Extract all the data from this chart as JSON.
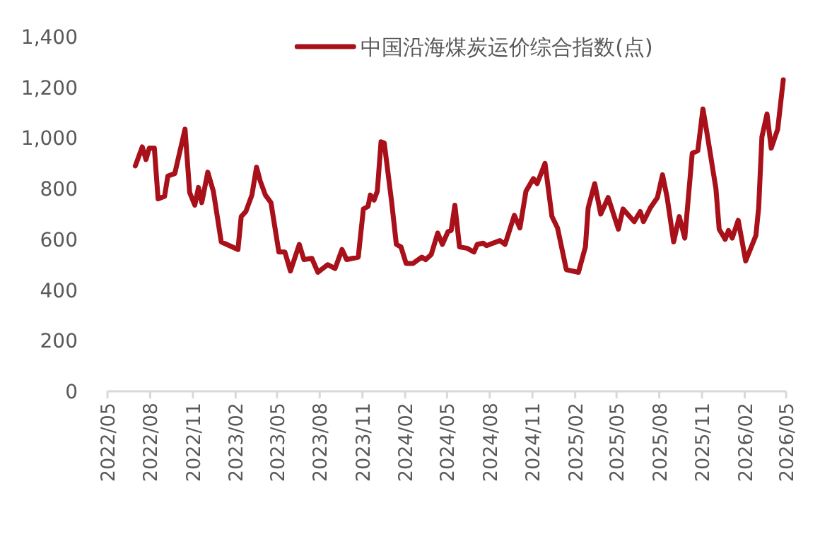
{
  "chart_data": {
    "type": "line",
    "legend": "top",
    "xlim": [
      "2022-05",
      "2026-05"
    ],
    "xticks": [
      {
        "value": "2022-05",
        "label": "2022/05"
      },
      {
        "value": "2022-08",
        "label": "2022/08"
      },
      {
        "value": "2022-11",
        "label": "2022/11"
      },
      {
        "value": "2023-02",
        "label": "2023/02"
      },
      {
        "value": "2023-05",
        "label": "2023/05"
      },
      {
        "value": "2023-08",
        "label": "2023/08"
      },
      {
        "value": "2023-11",
        "label": "2023/11"
      },
      {
        "value": "2024-02",
        "label": "2024/02"
      },
      {
        "value": "2024-05",
        "label": "2024/05"
      },
      {
        "value": "2024-08",
        "label": "2024/08"
      },
      {
        "value": "2024-11",
        "label": "2024/11"
      },
      {
        "value": "2025-02",
        "label": "2025/02"
      },
      {
        "value": "2025-05",
        "label": "2025/05"
      },
      {
        "value": "2025-08",
        "label": "2025/08"
      },
      {
        "value": "2025-11",
        "label": "2025/11"
      },
      {
        "value": "2026-02",
        "label": "2026/02"
      },
      {
        "value": "2026-05",
        "label": "2026/05"
      }
    ],
    "ylim": [
      0,
      1400
    ],
    "yticks": [
      0,
      200,
      400,
      600,
      800,
      {
        "value": 1000,
        "label": "1,000"
      },
      {
        "value": 1200,
        "label": "1,200"
      },
      {
        "value": 1400,
        "label": "1,400"
      }
    ],
    "x": [
      "2022-06-30",
      "2022-07-15",
      "2022-07-23",
      "2022-07-30",
      "2022-08-10",
      "2022-08-18",
      "2022-09-01",
      "2022-09-08",
      "2022-09-23",
      "2022-10-15",
      "2022-10-25",
      "2022-11-05",
      "2022-11-13",
      "2022-11-20",
      "2022-12-03",
      "2022-12-15",
      "2023-01-01",
      "2023-02-06",
      "2023-02-13",
      "2023-02-23",
      "2023-03-08",
      "2023-03-18",
      "2023-03-26",
      "2023-04-06",
      "2023-04-18",
      "2023-05-05",
      "2023-05-18",
      "2023-05-30",
      "2023-06-18",
      "2023-06-28",
      "2023-07-15",
      "2023-07-28",
      "2023-08-18",
      "2023-09-03",
      "2023-09-18",
      "2023-09-28",
      "2023-10-23",
      "2023-11-03",
      "2023-11-13",
      "2023-11-18",
      "2023-11-26",
      "2023-12-03",
      "2023-12-11",
      "2023-12-18",
      "2024-01-03",
      "2024-01-13",
      "2024-01-23",
      "2024-02-03",
      "2024-02-18",
      "2024-03-08",
      "2024-03-16",
      "2024-03-28",
      "2024-04-11",
      "2024-04-21",
      "2024-05-03",
      "2024-05-10",
      "2024-05-18",
      "2024-05-28",
      "2024-06-13",
      "2024-06-28",
      "2024-07-05",
      "2024-07-18",
      "2024-07-25",
      "2024-08-08",
      "2024-08-23",
      "2024-09-03",
      "2024-09-23",
      "2024-10-05",
      "2024-10-18",
      "2024-11-03",
      "2024-11-11",
      "2024-11-28",
      "2024-12-13",
      "2024-12-25",
      "2025-01-13",
      "2025-02-08",
      "2025-02-23",
      "2025-03-01",
      "2025-03-15",
      "2025-03-28",
      "2025-04-13",
      "2025-05-05",
      "2025-05-15",
      "2025-06-08",
      "2025-06-21",
      "2025-06-28",
      "2025-07-13",
      "2025-07-28",
      "2025-08-08",
      "2025-08-18",
      "2025-09-01",
      "2025-09-13",
      "2025-09-25",
      "2025-10-11",
      "2025-10-23",
      "2025-11-03",
      "2025-11-13",
      "2025-12-01",
      "2025-12-08",
      "2025-12-21",
      "2025-12-28",
      "2026-01-05",
      "2026-01-18",
      "2026-02-03",
      "2026-02-25",
      "2026-03-03",
      "2026-03-10",
      "2026-03-21",
      "2026-03-30",
      "2026-04-13",
      "2026-04-25"
    ],
    "series": [
      {
        "name": "中国沿海煤炭运价综合指数(点)",
        "color": "#a8101a",
        "values": [
          890,
          965,
          915,
          960,
          960,
          760,
          770,
          850,
          860,
          1035,
          785,
          735,
          805,
          745,
          865,
          790,
          590,
          560,
          690,
          710,
          775,
          885,
          830,
          775,
          745,
          550,
          550,
          475,
          580,
          520,
          525,
          470,
          500,
          485,
          560,
          520,
          530,
          720,
          730,
          775,
          755,
          790,
          985,
          980,
          745,
          580,
          570,
          505,
          505,
          530,
          520,
          540,
          625,
          580,
          630,
          635,
          735,
          570,
          565,
          550,
          580,
          585,
          575,
          585,
          595,
          580,
          695,
          645,
          790,
          840,
          820,
          900,
          690,
          645,
          480,
          470,
          570,
          725,
          820,
          700,
          765,
          640,
          720,
          670,
          710,
          670,
          725,
          765,
          855,
          765,
          590,
          690,
          605,
          940,
          950,
          1115,
          1005,
          800,
          640,
          600,
          635,
          605,
          675,
          515,
          615,
          725,
          1005,
          1095,
          960,
          1035,
          1230
        ]
      }
    ]
  }
}
